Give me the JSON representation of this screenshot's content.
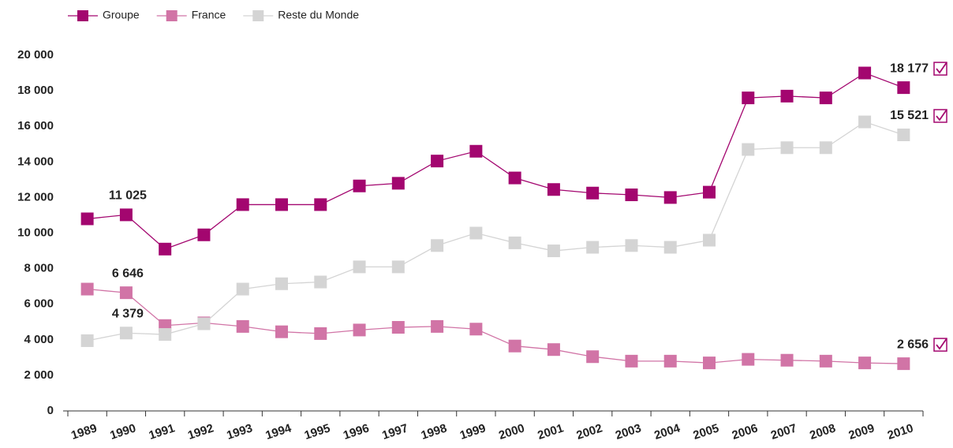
{
  "chart_data": {
    "type": "line",
    "categories": [
      "1989",
      "1990",
      "1991",
      "1992",
      "1993",
      "1994",
      "1995",
      "1996",
      "1997",
      "1998",
      "1999",
      "2000",
      "2001",
      "2002",
      "2003",
      "2004",
      "2005",
      "2006",
      "2007",
      "2008",
      "2009",
      "2010"
    ],
    "series": [
      {
        "name": "Groupe",
        "color": "#a3066f",
        "values": [
          10800,
          11025,
          9100,
          9900,
          11600,
          11600,
          11600,
          12650,
          12800,
          14050,
          14600,
          13100,
          12450,
          12250,
          12150,
          12000,
          12300,
          17600,
          17700,
          17600,
          19000,
          18177
        ],
        "value_labels": [
          null,
          "11 025",
          null,
          null,
          null,
          null,
          null,
          null,
          null,
          null,
          null,
          null,
          null,
          null,
          null,
          null,
          null,
          null,
          null,
          null,
          null,
          "18 177"
        ]
      },
      {
        "name": "France",
        "color": "#d174a6",
        "values": [
          6850,
          6646,
          4800,
          4950,
          4750,
          4450,
          4350,
          4550,
          4700,
          4750,
          4600,
          3650,
          3450,
          3050,
          2800,
          2800,
          2700,
          2900,
          2850,
          2800,
          2700,
          2656
        ],
        "value_labels": [
          null,
          "6 646",
          null,
          null,
          null,
          null,
          null,
          null,
          null,
          null,
          null,
          null,
          null,
          null,
          null,
          null,
          null,
          null,
          null,
          null,
          null,
          "2 656"
        ]
      },
      {
        "name": "Reste du Monde",
        "color": "#d4d4d4",
        "values": [
          3950,
          4379,
          4300,
          4900,
          6850,
          7150,
          7250,
          8100,
          8100,
          9300,
          10000,
          9450,
          9000,
          9200,
          9300,
          9200,
          9600,
          14700,
          14800,
          14800,
          16250,
          15521
        ],
        "value_labels": [
          null,
          "4 379",
          null,
          null,
          null,
          null,
          null,
          null,
          null,
          null,
          null,
          null,
          null,
          null,
          null,
          null,
          null,
          null,
          null,
          null,
          null,
          "15 521"
        ]
      }
    ],
    "ylim": [
      0,
      20000
    ],
    "yticks": [
      0,
      {
        "value": 2000,
        "label": "2 000"
      },
      {
        "value": 4000,
        "label": "4 000"
      },
      {
        "value": 6000,
        "label": "6 000"
      },
      {
        "value": 8000,
        "label": "8 000"
      },
      {
        "value": 10000,
        "label": "10 000"
      },
      {
        "value": 12000,
        "label": "12 000"
      },
      {
        "value": 14000,
        "label": "14 000"
      },
      {
        "value": 16000,
        "label": "16 000"
      },
      {
        "value": 18000,
        "label": "18 000"
      },
      {
        "value": 20000,
        "label": "20 000"
      }
    ],
    "legend": "top-left",
    "grid": false
  }
}
